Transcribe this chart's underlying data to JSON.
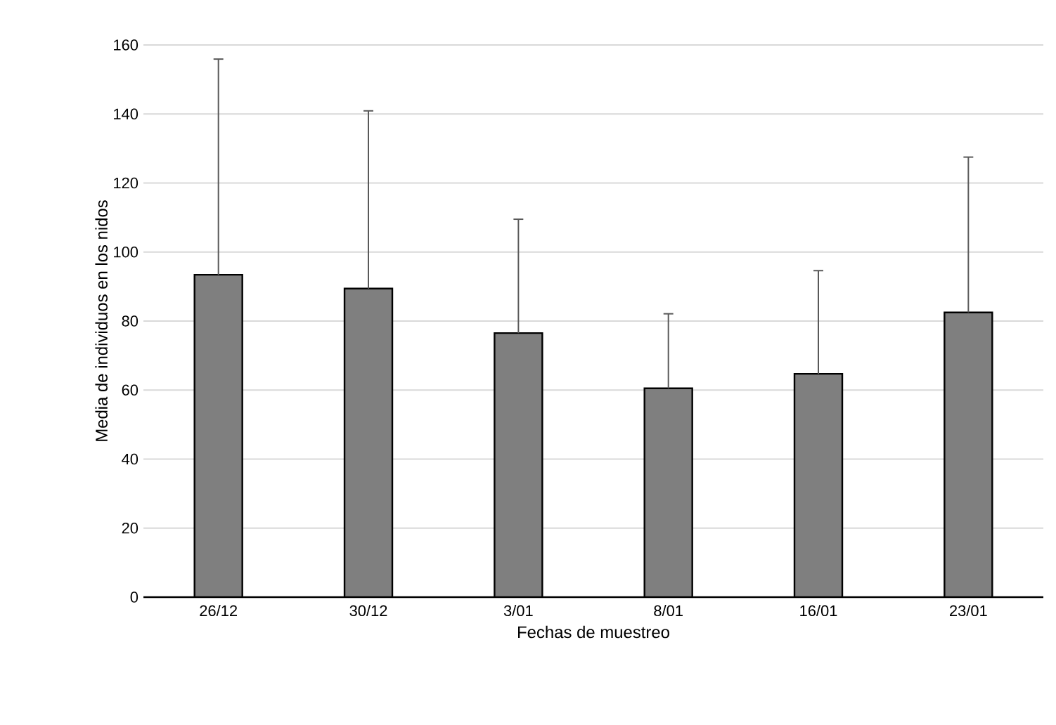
{
  "chart_data": {
    "type": "bar",
    "xlabel": "Fechas de muestreo",
    "ylabel": "Media de individuos en los nidos",
    "categories": [
      "26/12",
      "30/12",
      "3/01",
      "8/01",
      "16/01",
      "23/01"
    ],
    "values": [
      93.4,
      89.4,
      76.5,
      60.5,
      64.7,
      82.5
    ],
    "errors": [
      [
        93.4,
        155.9
      ],
      [
        89.4,
        140.9
      ],
      [
        76.5,
        109.5
      ],
      [
        60.5,
        82.1
      ],
      [
        64.7,
        94.6
      ],
      [
        82.5,
        127.5
      ]
    ],
    "color": "#7f7f7f",
    "ylim": [
      0,
      160
    ],
    "yticks": [
      0,
      20,
      40,
      60,
      80,
      100,
      120,
      140,
      160
    ],
    "grid": "y"
  }
}
